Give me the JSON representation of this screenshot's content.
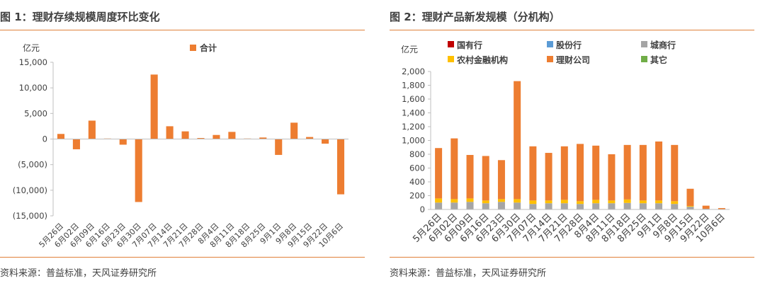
{
  "panels": {
    "left": {
      "title": "图 1：理财存续规模周度环比变化",
      "source": "资料来源：普益标准，天风证券研究所"
    },
    "right": {
      "title": "图 2：理财产品新发规模（分机构）",
      "source": "资料来源：普益标准，天风证券研究所"
    }
  },
  "colors": {
    "accent": "#e0813a",
    "bar_orange": "#ed7d31",
    "gray": "#a5a5a5",
    "yellow": "#ffc000",
    "green": "#70ad47",
    "dark_red": "#c00000",
    "blue": "#5b9bd5"
  },
  "chart_data": [
    {
      "type": "bar",
      "unit_label": "亿元",
      "categories": [
        "5月26日",
        "6月02日",
        "6月09日",
        "6月16日",
        "6月23日",
        "6月30日",
        "7月07日",
        "7月14日",
        "7月21日",
        "7月28日",
        "8月4日",
        "8月11日",
        "8月18日",
        "8月25日",
        "9月1日",
        "9月8日",
        "9月15日",
        "9月22日",
        "10月6日"
      ],
      "series": [
        {
          "name": "合计",
          "color": "#ed7d31",
          "values": [
            1000,
            -2000,
            3600,
            100,
            -1100,
            -12300,
            12600,
            2500,
            1500,
            200,
            800,
            1400,
            100,
            300,
            -3100,
            3200,
            400,
            -900,
            -10800
          ]
        }
      ],
      "yticks": [
        15000,
        10000,
        5000,
        0,
        -5000,
        -10000,
        -15000
      ],
      "ytick_labels": [
        "15,000",
        "10,000",
        "5,000",
        "0",
        "(5,000)",
        "(10,000)",
        "(15,000)"
      ],
      "ylim": [
        -15000,
        15000
      ],
      "legend": "top-center"
    },
    {
      "type": "bar",
      "stacked": true,
      "unit_label": "亿元",
      "categories": [
        "5月26日",
        "6月02日",
        "6月09日",
        "6月16日",
        "6月23日",
        "6月30日",
        "7月07日",
        "7月14日",
        "7月21日",
        "7月28日",
        "8月4日",
        "8月11日",
        "8月18日",
        "8月25日",
        "9月1日",
        "9月8日",
        "9月15日",
        "9月22日",
        "10月6日"
      ],
      "series": [
        {
          "name": "国有行",
          "color": "#c00000",
          "values": [
            0,
            0,
            0,
            0,
            0,
            0,
            0,
            0,
            0,
            0,
            0,
            0,
            0,
            0,
            0,
            0,
            0,
            0,
            0
          ]
        },
        {
          "name": "股份行",
          "color": "#5b9bd5",
          "values": [
            0,
            0,
            0,
            0,
            0,
            0,
            0,
            0,
            0,
            0,
            0,
            0,
            0,
            0,
            0,
            0,
            0,
            0,
            0
          ]
        },
        {
          "name": "城商行",
          "color": "#a5a5a5",
          "values": [
            100,
            100,
            110,
            90,
            110,
            100,
            80,
            90,
            90,
            80,
            90,
            90,
            95,
            90,
            90,
            80,
            40,
            10,
            5
          ]
        },
        {
          "name": "农村金融机构",
          "color": "#ffc000",
          "values": [
            60,
            50,
            50,
            40,
            40,
            50,
            50,
            40,
            50,
            40,
            50,
            40,
            50,
            40,
            40,
            40,
            10,
            0,
            0
          ]
        },
        {
          "name": "理财公司",
          "color": "#ed7d31",
          "values": [
            730,
            880,
            630,
            645,
            565,
            1710,
            785,
            690,
            775,
            830,
            785,
            670,
            790,
            805,
            855,
            815,
            250,
            45,
            15
          ]
        },
        {
          "name": "其它",
          "color": "#70ad47",
          "values": [
            0,
            0,
            0,
            0,
            0,
            0,
            0,
            0,
            0,
            0,
            0,
            0,
            0,
            0,
            0,
            0,
            0,
            0,
            0
          ]
        }
      ],
      "yticks": [
        0,
        200,
        400,
        600,
        800,
        1000,
        1200,
        1400,
        1600,
        1800,
        2000
      ],
      "ytick_labels": [
        "0",
        "200",
        "400",
        "600",
        "800",
        "1,000",
        "1,200",
        "1,400",
        "1,600",
        "1,800",
        "2,000"
      ],
      "ylim": [
        0,
        2000
      ],
      "legend": "top"
    }
  ]
}
